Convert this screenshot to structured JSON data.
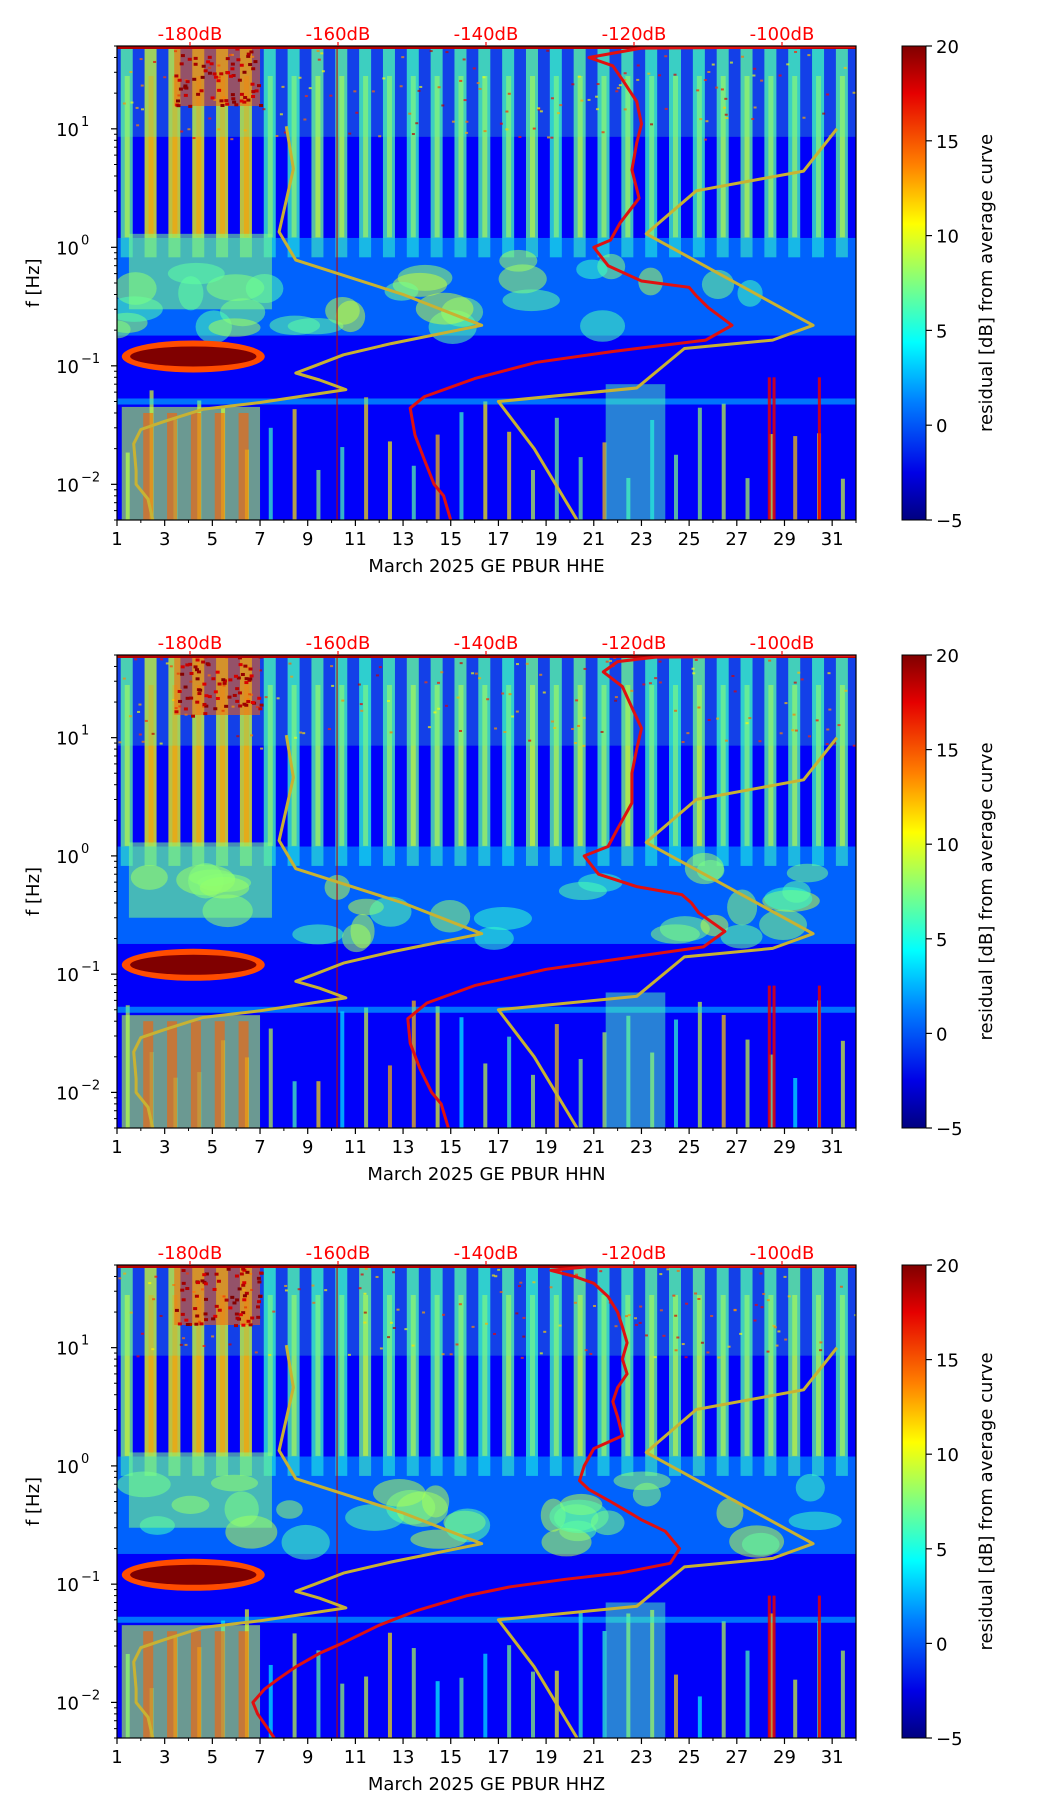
{
  "figure": {
    "title": ""
  },
  "chart_data": [
    {
      "type": "heatmap",
      "title": "",
      "xlabel": "March 2025 GE PBUR  HHE",
      "ylabel": "f [Hz]",
      "x_ticks": [
        "1",
        "3",
        "5",
        "7",
        "9",
        "11",
        "13",
        "15",
        "17",
        "19",
        "21",
        "23",
        "25",
        "27",
        "29",
        "31"
      ],
      "y_ticks": [
        {
          "value": 0.01,
          "base": "10",
          "exp": "−2"
        },
        {
          "value": 0.1,
          "base": "10",
          "exp": "−1"
        },
        {
          "value": 1,
          "base": "10",
          "exp": "0"
        },
        {
          "value": 10,
          "base": "10",
          "exp": "1"
        }
      ],
      "top_axis": {
        "ticks": [
          "-180dB",
          "-160dB",
          "-140dB",
          "-120dB",
          "-100dB"
        ],
        "color": "#ff0000"
      },
      "xlim": [
        1,
        32
      ],
      "ylim": [
        0.005,
        50
      ],
      "colorbar": {
        "label": "residual [dB] from average curve",
        "ticks": [
          "20",
          "15",
          "10",
          "5",
          "0",
          "−5"
        ],
        "range": [
          -5,
          20
        ],
        "colormap": "jet"
      },
      "series": [
        {
          "name": "curve-yellow",
          "color": "#c8b232",
          "points": [
            [
              2.5,
              0.005
            ],
            [
              2.3,
              0.0075
            ],
            [
              1.8,
              0.01
            ],
            [
              1.8,
              0.013
            ],
            [
              1.7,
              0.022
            ],
            [
              2.0,
              0.029
            ],
            [
              3.0,
              0.034
            ],
            [
              4.6,
              0.043
            ],
            [
              7.0,
              0.049
            ],
            [
              10.6,
              0.063
            ],
            [
              9.5,
              0.076
            ],
            [
              8.5,
              0.087
            ],
            [
              9.3,
              0.1
            ],
            [
              10.5,
              0.124
            ],
            [
              12.5,
              0.154
            ],
            [
              16.3,
              0.22
            ],
            [
              13.0,
              0.4
            ],
            [
              8.5,
              0.78
            ],
            [
              7.8,
              1.35
            ],
            [
              8.4,
              4.6
            ],
            [
              8.1,
              10.5
            ]
          ]
        },
        {
          "name": "curve-red",
          "color": "#e01010",
          "points": [
            [
              15.0,
              0.005
            ],
            [
              14.7,
              0.008
            ],
            [
              14.3,
              0.01
            ],
            [
              13.9,
              0.016
            ],
            [
              13.5,
              0.026
            ],
            [
              13.3,
              0.044
            ],
            [
              13.9,
              0.055
            ],
            [
              16.0,
              0.078
            ],
            [
              18.6,
              0.107
            ],
            [
              21.8,
              0.132
            ],
            [
              25.7,
              0.165
            ],
            [
              26.8,
              0.22
            ],
            [
              25.8,
              0.31
            ],
            [
              25.3,
              0.39
            ],
            [
              25.0,
              0.46
            ],
            [
              23.0,
              0.52
            ],
            [
              21.6,
              0.7
            ],
            [
              21.0,
              1.0
            ],
            [
              21.7,
              1.15
            ],
            [
              22.1,
              1.6
            ],
            [
              22.9,
              2.6
            ],
            [
              22.6,
              4.5
            ],
            [
              22.8,
              7.6
            ],
            [
              23.0,
              11.0
            ],
            [
              22.8,
              17.0
            ],
            [
              22.2,
              26.0
            ],
            [
              21.8,
              34.0
            ],
            [
              20.8,
              40.0
            ],
            [
              23.0,
              48.0
            ],
            [
              32.0,
              49.5
            ]
          ]
        },
        {
          "name": "curve-yellow-2",
          "color": "#c8b232",
          "points": [
            [
              20.3,
              0.005
            ],
            [
              18.5,
              0.02
            ],
            [
              17.0,
              0.05
            ],
            [
              22.8,
              0.065
            ],
            [
              24.8,
              0.14
            ],
            [
              28.5,
              0.165
            ],
            [
              30.2,
              0.22
            ],
            [
              23.2,
              1.3
            ],
            [
              25.3,
              3.0
            ],
            [
              29.8,
              4.4
            ],
            [
              31.2,
              10.0
            ]
          ]
        }
      ]
    },
    {
      "type": "heatmap",
      "title": "",
      "xlabel": "March 2025 GE PBUR  HHN",
      "ylabel": "f [Hz]",
      "x_ticks": [
        "1",
        "3",
        "5",
        "7",
        "9",
        "11",
        "13",
        "15",
        "17",
        "19",
        "21",
        "23",
        "25",
        "27",
        "29",
        "31"
      ],
      "y_ticks": [
        {
          "value": 0.01,
          "base": "10",
          "exp": "−2"
        },
        {
          "value": 0.1,
          "base": "10",
          "exp": "−1"
        },
        {
          "value": 1,
          "base": "10",
          "exp": "0"
        },
        {
          "value": 10,
          "base": "10",
          "exp": "1"
        }
      ],
      "top_axis": {
        "ticks": [
          "-180dB",
          "-160dB",
          "-140dB",
          "-120dB",
          "-100dB"
        ],
        "color": "#ff0000"
      },
      "xlim": [
        1,
        32
      ],
      "ylim": [
        0.005,
        50
      ],
      "colorbar": {
        "label": "residual [dB] from average curve",
        "ticks": [
          "20",
          "15",
          "10",
          "5",
          "0",
          "−5"
        ],
        "range": [
          -5,
          20
        ],
        "colormap": "jet"
      },
      "series": [
        {
          "name": "curve-yellow",
          "color": "#c8b232",
          "points": [
            [
              2.5,
              0.005
            ],
            [
              2.3,
              0.0075
            ],
            [
              1.8,
              0.01
            ],
            [
              1.8,
              0.013
            ],
            [
              1.7,
              0.022
            ],
            [
              2.0,
              0.029
            ],
            [
              3.0,
              0.034
            ],
            [
              4.6,
              0.043
            ],
            [
              7.0,
              0.049
            ],
            [
              10.6,
              0.063
            ],
            [
              9.5,
              0.076
            ],
            [
              8.5,
              0.087
            ],
            [
              9.3,
              0.1
            ],
            [
              10.5,
              0.124
            ],
            [
              12.5,
              0.154
            ],
            [
              16.3,
              0.22
            ],
            [
              13.0,
              0.4
            ],
            [
              8.5,
              0.78
            ],
            [
              7.8,
              1.35
            ],
            [
              8.4,
              4.6
            ],
            [
              8.1,
              10.5
            ]
          ]
        },
        {
          "name": "curve-red",
          "color": "#e01010",
          "points": [
            [
              14.9,
              0.005
            ],
            [
              14.6,
              0.008
            ],
            [
              14.2,
              0.01
            ],
            [
              13.7,
              0.016
            ],
            [
              13.3,
              0.026
            ],
            [
              13.2,
              0.042
            ],
            [
              14.0,
              0.057
            ],
            [
              16.0,
              0.08
            ],
            [
              19.0,
              0.11
            ],
            [
              22.0,
              0.134
            ],
            [
              25.6,
              0.17
            ],
            [
              26.5,
              0.23
            ],
            [
              25.4,
              0.33
            ],
            [
              25.1,
              0.4
            ],
            [
              24.7,
              0.47
            ],
            [
              22.8,
              0.55
            ],
            [
              21.2,
              0.7
            ],
            [
              20.6,
              1.0
            ],
            [
              21.6,
              1.2
            ],
            [
              22.0,
              1.7
            ],
            [
              22.6,
              2.8
            ],
            [
              22.6,
              5.0
            ],
            [
              22.8,
              8.0
            ],
            [
              23.0,
              12.0
            ],
            [
              22.6,
              18.0
            ],
            [
              22.2,
              27.0
            ],
            [
              21.4,
              36.0
            ],
            [
              22.0,
              44.0
            ],
            [
              23.6,
              48.0
            ],
            [
              32.0,
              49.5
            ]
          ]
        },
        {
          "name": "curve-yellow-2",
          "color": "#c8b232",
          "points": [
            [
              20.3,
              0.005
            ],
            [
              18.5,
              0.02
            ],
            [
              17.0,
              0.05
            ],
            [
              22.8,
              0.065
            ],
            [
              24.8,
              0.14
            ],
            [
              28.5,
              0.165
            ],
            [
              30.2,
              0.22
            ],
            [
              23.2,
              1.3
            ],
            [
              25.3,
              3.0
            ],
            [
              29.8,
              4.4
            ],
            [
              31.2,
              10.0
            ]
          ]
        }
      ]
    },
    {
      "type": "heatmap",
      "title": "",
      "xlabel": "March 2025 GE PBUR  HHZ",
      "ylabel": "f [Hz]",
      "x_ticks": [
        "1",
        "3",
        "5",
        "7",
        "9",
        "11",
        "13",
        "15",
        "17",
        "19",
        "21",
        "23",
        "25",
        "27",
        "29",
        "31"
      ],
      "y_ticks": [
        {
          "value": 0.01,
          "base": "10",
          "exp": "−2"
        },
        {
          "value": 0.1,
          "base": "10",
          "exp": "−1"
        },
        {
          "value": 1,
          "base": "10",
          "exp": "0"
        },
        {
          "value": 10,
          "base": "10",
          "exp": "1"
        }
      ],
      "top_axis": {
        "ticks": [
          "-180dB",
          "-160dB",
          "-140dB",
          "-120dB",
          "-100dB"
        ],
        "color": "#ff0000"
      },
      "xlim": [
        1,
        32
      ],
      "ylim": [
        0.005,
        50
      ],
      "colorbar": {
        "label": "residual [dB] from average curve",
        "ticks": [
          "20",
          "15",
          "10",
          "5",
          "0",
          "−5"
        ],
        "range": [
          -5,
          20
        ],
        "colormap": "jet"
      },
      "series": [
        {
          "name": "curve-yellow",
          "color": "#c8b232",
          "points": [
            [
              2.5,
              0.005
            ],
            [
              2.3,
              0.0075
            ],
            [
              1.8,
              0.01
            ],
            [
              1.8,
              0.013
            ],
            [
              1.7,
              0.022
            ],
            [
              2.0,
              0.029
            ],
            [
              3.0,
              0.034
            ],
            [
              4.6,
              0.043
            ],
            [
              7.0,
              0.049
            ],
            [
              10.6,
              0.063
            ],
            [
              9.5,
              0.076
            ],
            [
              8.5,
              0.087
            ],
            [
              9.3,
              0.1
            ],
            [
              10.5,
              0.124
            ],
            [
              12.5,
              0.154
            ],
            [
              16.3,
              0.22
            ],
            [
              13.0,
              0.4
            ],
            [
              8.5,
              0.78
            ],
            [
              7.8,
              1.35
            ],
            [
              8.4,
              4.6
            ],
            [
              8.1,
              10.5
            ]
          ]
        },
        {
          "name": "curve-red",
          "color": "#e01010",
          "points": [
            [
              7.6,
              0.005
            ],
            [
              6.9,
              0.008
            ],
            [
              6.7,
              0.01
            ],
            [
              7.2,
              0.013
            ],
            [
              7.8,
              0.016
            ],
            [
              8.5,
              0.02
            ],
            [
              9.5,
              0.026
            ],
            [
              10.5,
              0.032
            ],
            [
              12.0,
              0.045
            ],
            [
              13.6,
              0.06
            ],
            [
              15.7,
              0.08
            ],
            [
              17.5,
              0.095
            ],
            [
              19.8,
              0.11
            ],
            [
              22.2,
              0.125
            ],
            [
              24.2,
              0.15
            ],
            [
              24.6,
              0.2
            ],
            [
              24.0,
              0.28
            ],
            [
              23.0,
              0.35
            ],
            [
              21.7,
              0.5
            ],
            [
              20.8,
              0.63
            ],
            [
              20.4,
              0.75
            ],
            [
              20.6,
              1.0
            ],
            [
              21.0,
              1.4
            ],
            [
              22.2,
              1.8
            ],
            [
              22.0,
              2.6
            ],
            [
              21.8,
              3.5
            ],
            [
              22.0,
              4.6
            ],
            [
              22.4,
              6.0
            ],
            [
              22.2,
              8.0
            ],
            [
              22.4,
              11.0
            ],
            [
              22.2,
              15.0
            ],
            [
              22.0,
              20.0
            ],
            [
              21.6,
              27.0
            ],
            [
              21.0,
              35.0
            ],
            [
              20.2,
              40.0
            ],
            [
              19.2,
              45.0
            ],
            [
              20.8,
              48.5
            ],
            [
              32.0,
              49.5
            ]
          ]
        },
        {
          "name": "curve-yellow-2",
          "color": "#c8b232",
          "points": [
            [
              20.3,
              0.005
            ],
            [
              18.5,
              0.02
            ],
            [
              17.0,
              0.05
            ],
            [
              22.8,
              0.065
            ],
            [
              24.8,
              0.14
            ],
            [
              28.5,
              0.165
            ],
            [
              30.2,
              0.22
            ],
            [
              23.2,
              1.3
            ],
            [
              25.3,
              3.0
            ],
            [
              29.8,
              4.4
            ],
            [
              31.2,
              10.0
            ]
          ]
        }
      ]
    }
  ]
}
